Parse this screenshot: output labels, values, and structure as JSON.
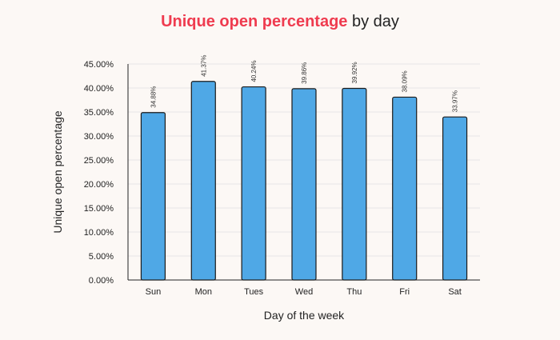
{
  "chart_data": {
    "type": "bar",
    "title_highlight": "Unique open percentage",
    "title_rest": "by day",
    "xlabel": "Day of the week",
    "ylabel": "Unique open percentage",
    "categories": [
      "Sun",
      "Mon",
      "Tues",
      "Wed",
      "Thu",
      "Fri",
      "Sat"
    ],
    "values": [
      34.88,
      41.37,
      40.24,
      39.86,
      39.92,
      38.09,
      33.97
    ],
    "value_labels": [
      "34.88%",
      "41.37%",
      "40.24%",
      "39.86%",
      "39.92%",
      "38.09%",
      "33.97%"
    ],
    "ylim": [
      0,
      45
    ],
    "yticks": [
      0,
      5,
      10,
      15,
      20,
      25,
      30,
      35,
      40,
      45
    ],
    "ytick_labels": [
      "0.00%",
      "5.00%",
      "10.00%",
      "15.00%",
      "20.00%",
      "25.00%",
      "30.00%",
      "35.00%",
      "40.00%",
      "45.00%"
    ],
    "grid": true,
    "legend": "none"
  },
  "colors": {
    "bar_fill": "#4fa8e6",
    "bar_stroke": "#1b1b1b",
    "title_highlight": "#ef3b4f",
    "title_rest": "#222222",
    "grid": "#e6e6e6",
    "axis": "#222222",
    "background": "#fcf8f5"
  }
}
